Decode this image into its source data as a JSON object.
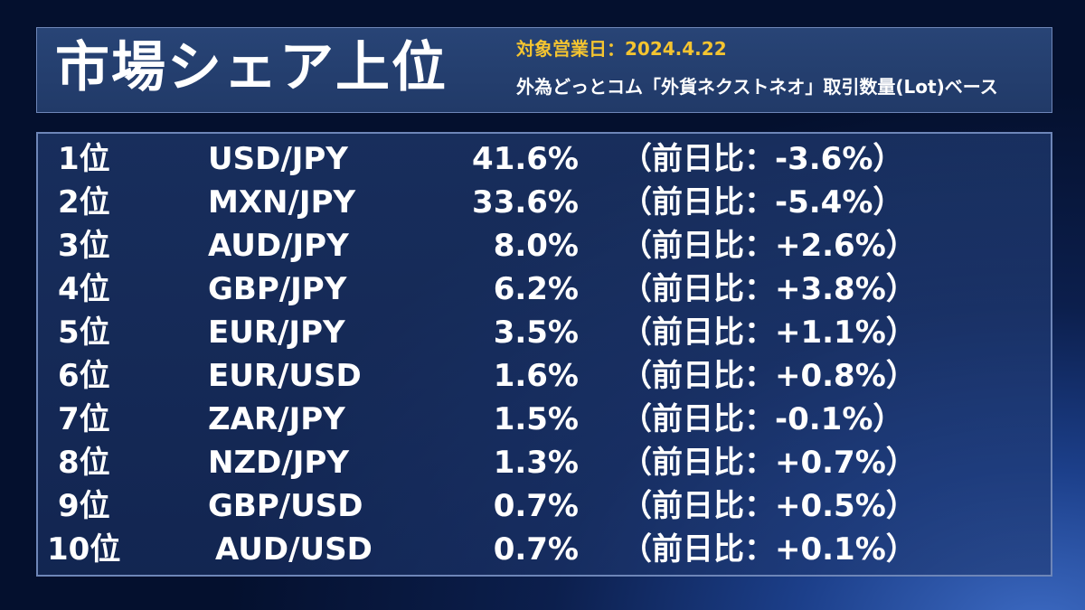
{
  "header": {
    "title": "市場シェア上位",
    "date_label": "対象営業日：2024.4.22",
    "subtitle": "外為どっとコム「外貨ネクストネオ」取引数量(Lot)ベース"
  },
  "rows": [
    {
      "rank": "1位",
      "pair": "USD/JPY",
      "share": "41.6%",
      "change": "（前日比：-3.6%）"
    },
    {
      "rank": "2位",
      "pair": "MXN/JPY",
      "share": "33.6%",
      "change": "（前日比：-5.4%）"
    },
    {
      "rank": "3位",
      "pair": "AUD/JPY",
      "share": "8.0%",
      "change": "（前日比：+2.6%）"
    },
    {
      "rank": "4位",
      "pair": "GBP/JPY",
      "share": "6.2%",
      "change": "（前日比：+3.8%）"
    },
    {
      "rank": "5位",
      "pair": "EUR/JPY",
      "share": "3.5%",
      "change": "（前日比：+1.1%）"
    },
    {
      "rank": "6位",
      "pair": "EUR/USD",
      "share": "1.6%",
      "change": "（前日比：+0.8%）"
    },
    {
      "rank": "7位",
      "pair": "ZAR/JPY",
      "share": "1.5%",
      "change": "（前日比：-0.1%）"
    },
    {
      "rank": "8位",
      "pair": "NZD/JPY",
      "share": "1.3%",
      "change": "（前日比：+0.7%）"
    },
    {
      "rank": "9位",
      "pair": "GBP/USD",
      "share": "0.7%",
      "change": "（前日比：+0.5%）"
    },
    {
      "rank": "10位",
      "pair": "AUD/USD",
      "share": "0.7%",
      "change": "（前日比：+0.1%）"
    }
  ]
}
